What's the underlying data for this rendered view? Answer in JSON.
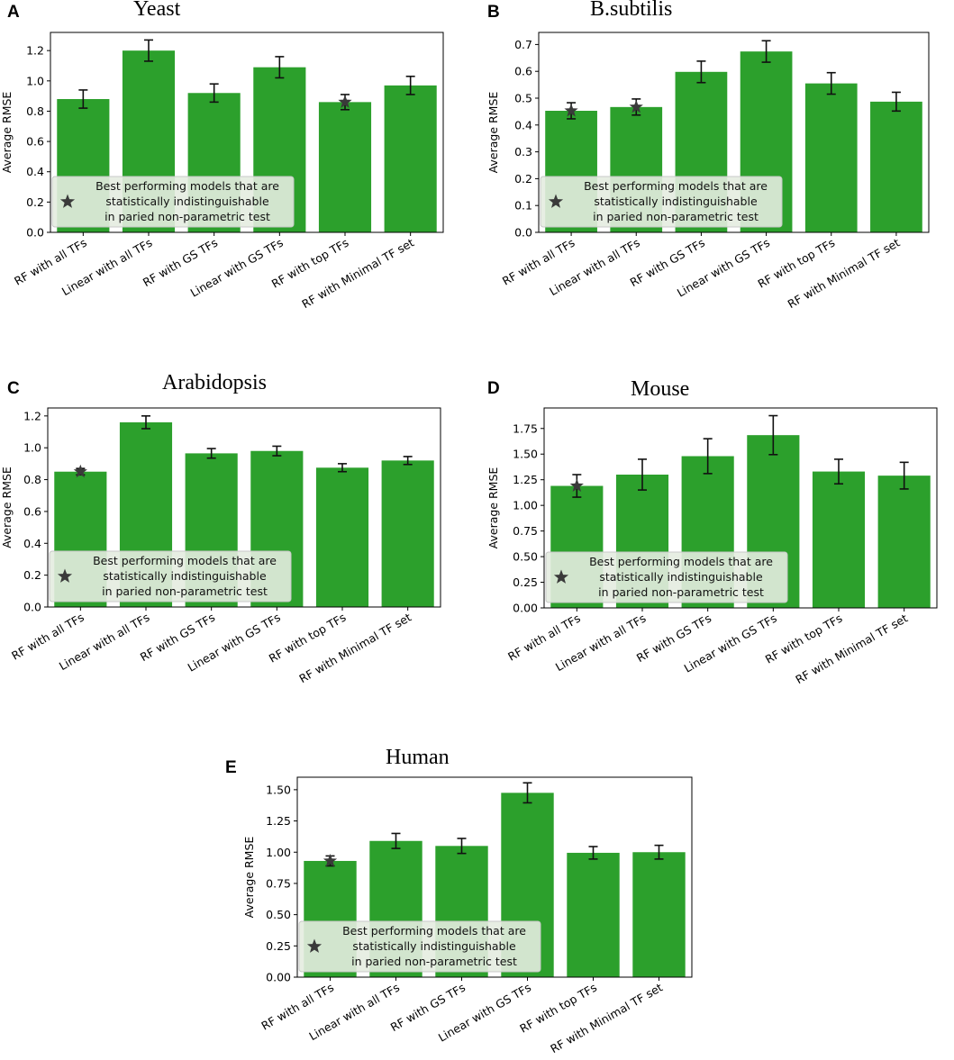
{
  "colors": {
    "bar": "#2ca02c",
    "err": "#111111",
    "star": "#3a3a3a",
    "legend_bg": "#e4ece0",
    "legend_border": "#c8c8c8"
  },
  "legend": {
    "lines": [
      "Best performing models that are",
      "statistically indistinguishable",
      "in paried non-parametric test"
    ]
  },
  "chart_data": [
    {
      "panel": "A",
      "title": "Yeast",
      "type": "bar",
      "ylabel": "Average RMSE",
      "ylim": [
        0,
        1.32
      ],
      "yticks": [
        "0.0",
        "0.2",
        "0.4",
        "0.6",
        "0.8",
        "1.0",
        "1.2"
      ],
      "ytick_values": [
        0,
        0.2,
        0.4,
        0.6,
        0.8,
        1.0,
        1.2
      ],
      "categories": [
        "RF with all TFs",
        "Linear with all TFs",
        "RF with GS TFs",
        "Linear with GS TFs",
        "RF with top TFs",
        "RF with Minimal TF set"
      ],
      "values": [
        0.88,
        1.2,
        0.92,
        1.09,
        0.86,
        0.97
      ],
      "errors": [
        0.06,
        0.07,
        0.06,
        0.07,
        0.05,
        0.06
      ],
      "starred": [
        4
      ]
    },
    {
      "panel": "B",
      "title": "B.subtilis",
      "type": "bar",
      "ylabel": "Average RMSE",
      "ylim": [
        0,
        0.745
      ],
      "yticks": [
        "0.0",
        "0.1",
        "0.2",
        "0.3",
        "0.4",
        "0.5",
        "0.6",
        "0.7"
      ],
      "ytick_values": [
        0,
        0.1,
        0.2,
        0.3,
        0.4,
        0.5,
        0.6,
        0.7
      ],
      "categories": [
        "RF with all TFs",
        "Linear with all TFs",
        "RF with GS TFs",
        "Linear with GS TFs",
        "RF with top TFs",
        "RF with Minimal TF set"
      ],
      "values": [
        0.453,
        0.467,
        0.598,
        0.674,
        0.555,
        0.487
      ],
      "errors": [
        0.03,
        0.03,
        0.04,
        0.04,
        0.04,
        0.035
      ],
      "starred": [
        0,
        1
      ]
    },
    {
      "panel": "C",
      "title": "Arabidopsis",
      "type": "bar",
      "ylabel": "Average RMSE",
      "ylim": [
        0,
        1.25
      ],
      "yticks": [
        "0.0",
        "0.2",
        "0.4",
        "0.6",
        "0.8",
        "1.0",
        "1.2"
      ],
      "ytick_values": [
        0,
        0.2,
        0.4,
        0.6,
        0.8,
        1.0,
        1.2
      ],
      "categories": [
        "RF with all TFs",
        "Linear with all TFs",
        "RF with GS TFs",
        "Linear with GS TFs",
        "RF with top TFs",
        "RF with Minimal TF set"
      ],
      "values": [
        0.85,
        1.16,
        0.965,
        0.98,
        0.875,
        0.92
      ],
      "errors": [
        0.02,
        0.04,
        0.03,
        0.03,
        0.025,
        0.025
      ],
      "starred": [
        0
      ]
    },
    {
      "panel": "D",
      "title": "Mouse",
      "type": "bar",
      "ylabel": "Average RMSE",
      "ylim": [
        0,
        1.95
      ],
      "yticks": [
        "0.00",
        "0.25",
        "0.50",
        "0.75",
        "1.00",
        "1.25",
        "1.50",
        "1.75"
      ],
      "ytick_values": [
        0,
        0.25,
        0.5,
        0.75,
        1.0,
        1.25,
        1.5,
        1.75
      ],
      "categories": [
        "RF with all TFs",
        "Linear with all TFs",
        "RF with GS TFs",
        "Linear with GS TFs",
        "RF with top TFs",
        "RF with Minimal TF set"
      ],
      "values": [
        1.19,
        1.3,
        1.48,
        1.685,
        1.33,
        1.29
      ],
      "errors": [
        0.11,
        0.15,
        0.17,
        0.19,
        0.12,
        0.13
      ],
      "starred": [
        0
      ]
    },
    {
      "panel": "E",
      "title": "Human",
      "type": "bar",
      "ylabel": "Average RMSE",
      "ylim": [
        0,
        1.6
      ],
      "yticks": [
        "0.00",
        "0.25",
        "0.50",
        "0.75",
        "1.00",
        "1.25",
        "1.50"
      ],
      "ytick_values": [
        0,
        0.25,
        0.5,
        0.75,
        1.0,
        1.25,
        1.5
      ],
      "categories": [
        "RF with all TFs",
        "Linear with all TFs",
        "RF with GS TFs",
        "Linear with GS TFs",
        "RF with top TFs",
        "RF with Minimal TF set"
      ],
      "values": [
        0.93,
        1.09,
        1.05,
        1.475,
        0.995,
        1.0
      ],
      "errors": [
        0.04,
        0.06,
        0.06,
        0.08,
        0.05,
        0.055
      ],
      "starred": [
        0
      ]
    }
  ]
}
